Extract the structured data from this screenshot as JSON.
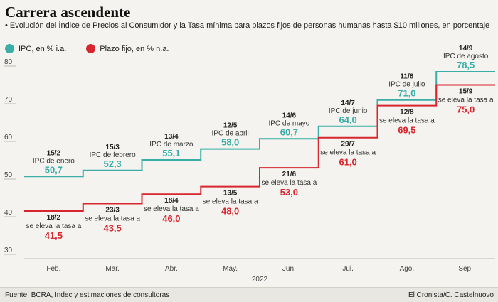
{
  "header": {
    "title": "Carrera ascendente",
    "subtitle": "• Evolución del Índice de Precios al Consumidor y la Tasa mínima para plazos fijos de personas humanas hasta $10 millones, en porcentaje"
  },
  "legend": [
    {
      "label": "IPC, en % i.a.",
      "color": "#3aaea6"
    },
    {
      "label": "Plazo fijo, en % n.a.",
      "color": "#d7262f"
    }
  ],
  "footer": {
    "source": "Fuente: BCRA, Indec y estimaciones de consultoras",
    "credit": "El Cronista/C. Castelnuovo"
  },
  "chart_data": {
    "type": "line",
    "step": true,
    "x_categories": [
      "Feb.",
      "Mar.",
      "Abr.",
      "May.",
      "Jun.",
      "Jul.",
      "Ago.",
      "Sep."
    ],
    "x_group_label": "2022",
    "ylim": [
      30,
      80
    ],
    "yticks": [
      30,
      40,
      50,
      60,
      70,
      80
    ],
    "grid": false,
    "legend_position": "top-left",
    "series": [
      {
        "name": "IPC, en % i.a.",
        "color": "#3aaea6",
        "points": [
          {
            "x": "Feb.",
            "y": 50.7,
            "date": "15/2",
            "label": "IPC de enero",
            "value": "50,7"
          },
          {
            "x": "Mar.",
            "y": 52.3,
            "date": "15/3",
            "label": "IPC de febrero",
            "value": "52,3"
          },
          {
            "x": "Abr.",
            "y": 55.1,
            "date": "13/4",
            "label": "IPC de marzo",
            "value": "55,1"
          },
          {
            "x": "May.",
            "y": 58.0,
            "date": "12/5",
            "label": "IPC de abril",
            "value": "58,0"
          },
          {
            "x": "Jun.",
            "y": 60.7,
            "date": "14/6",
            "label": "IPC de mayo",
            "value": "60,7"
          },
          {
            "x": "Jul.",
            "y": 64.0,
            "date": "14/7",
            "label": "IPC de junio",
            "value": "64,0"
          },
          {
            "x": "Ago.",
            "y": 71.0,
            "date": "11/8",
            "label": "IPC de julio",
            "value": "71,0"
          },
          {
            "x": "Sep.",
            "y": 78.5,
            "date": "14/9",
            "label": "IPC de agosto",
            "value": "78,5"
          }
        ]
      },
      {
        "name": "Plazo fijo, en % n.a.",
        "color": "#d7262f",
        "points": [
          {
            "x": "Feb.",
            "y": 41.5,
            "date": "18/2",
            "label": "se eleva la tasa a",
            "value": "41,5"
          },
          {
            "x": "Mar.",
            "y": 43.5,
            "date": "23/3",
            "label": "se eleva la tasa a",
            "value": "43,5"
          },
          {
            "x": "Abr.",
            "y": 46.0,
            "date": "18/4",
            "label": "se eleva la tasa a",
            "value": "46,0"
          },
          {
            "x": "May.",
            "y": 48.0,
            "date": "13/5",
            "label": "se eleva la tasa a",
            "value": "48,0"
          },
          {
            "x": "Jun.",
            "y": 53.0,
            "date": "21/6",
            "label": "se eleva la tasa a",
            "value": "53,0"
          },
          {
            "x": "Jul.",
            "y": 61.0,
            "date": "29/7",
            "label": "se eleva la tasa a",
            "value": "61,0"
          },
          {
            "x": "Ago.",
            "y": 69.5,
            "date": "12/8",
            "label": "se eleva la tasa a",
            "value": "69,5"
          },
          {
            "x": "Sep.",
            "y": 75.0,
            "date": "15/9",
            "label": "se eleva la tasa a",
            "value": "75,0"
          }
        ]
      }
    ]
  }
}
